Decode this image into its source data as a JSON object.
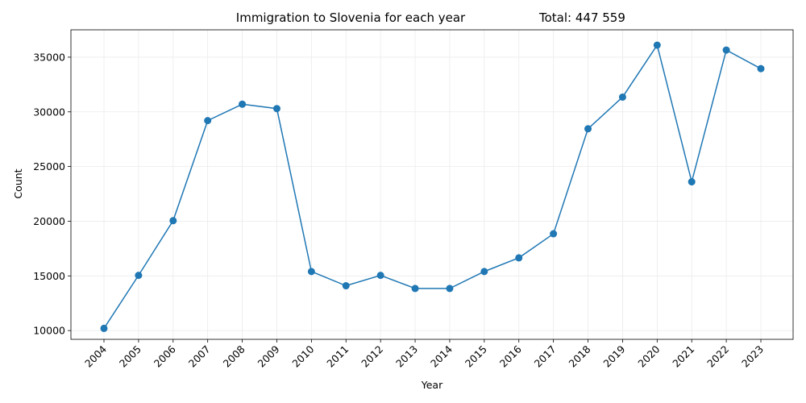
{
  "chart_data": {
    "type": "line",
    "title": "Immigration to Slovenia for each year",
    "subtitle": "Total: 447 559",
    "xlabel": "Year",
    "ylabel": "Count",
    "x": [
      "2004",
      "2005",
      "2006",
      "2007",
      "2008",
      "2009",
      "2010",
      "2011",
      "2012",
      "2013",
      "2014",
      "2015",
      "2016",
      "2017",
      "2018",
      "2019",
      "2020",
      "2021",
      "2022",
      "2023"
    ],
    "series": [
      {
        "values": [
          10200,
          15050,
          20050,
          29200,
          30700,
          30300,
          15400,
          14100,
          15050,
          13850,
          13850,
          15400,
          16650,
          18850,
          28450,
          31350,
          36100,
          23600,
          35650,
          33950
        ],
        "color": "#1f77b4"
      }
    ],
    "ylim": [
      9200,
      37500
    ],
    "yticks": [
      10000,
      15000,
      20000,
      25000,
      30000,
      35000
    ],
    "grid": true,
    "legend": "none"
  }
}
